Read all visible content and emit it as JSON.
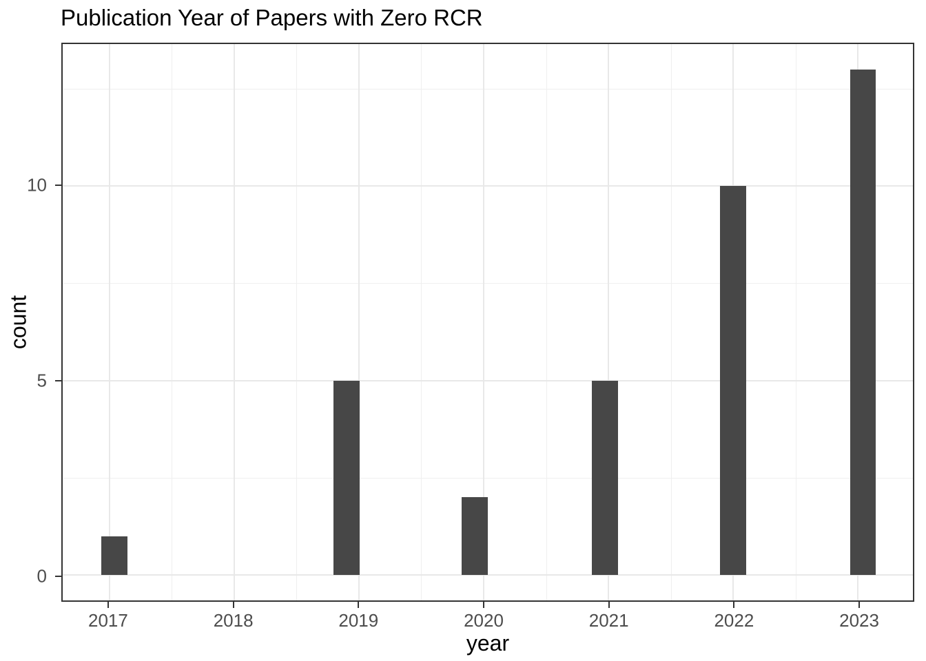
{
  "title": "Publication Year of Papers with Zero RCR",
  "axes": {
    "x_label": "year",
    "y_label": "count"
  },
  "colors": {
    "bar_fill": "#474747",
    "panel_border": "#333333",
    "grid_major": "#e8e8e8",
    "grid_minor": "#efefef",
    "tick_mark": "#333333",
    "tick_label": "#4d4d4d",
    "title_text": "#000000",
    "background": "#ffffff"
  },
  "chart_data": {
    "type": "bar",
    "title": "Publication Year of Papers with Zero RCR",
    "xlabel": "year",
    "ylabel": "count",
    "categories": [
      2017,
      2018,
      2019,
      2020,
      2021,
      2022,
      2023
    ],
    "values": [
      1,
      0,
      5,
      2,
      5,
      10,
      13
    ],
    "bars": [
      {
        "x": 2017.04,
        "count": 1
      },
      {
        "x": 2018.9,
        "count": 5
      },
      {
        "x": 2019.93,
        "count": 2
      },
      {
        "x": 2020.97,
        "count": 5
      },
      {
        "x": 2022.0,
        "count": 10
      },
      {
        "x": 2023.04,
        "count": 13
      }
    ],
    "bar_width_x": 0.209,
    "x_ticks": [
      2017,
      2018,
      2019,
      2020,
      2021,
      2022,
      2023
    ],
    "x_minor_ticks": [
      2017.5,
      2018.5,
      2019.5,
      2020.5,
      2021.5,
      2022.5
    ],
    "y_ticks": [
      0,
      5,
      10
    ],
    "y_minor_ticks": [
      2.5,
      7.5,
      12.5
    ],
    "xlim": [
      2016.626,
      2023.44
    ],
    "ylim": [
      -0.65,
      13.65
    ],
    "grid": true,
    "legend": false
  }
}
